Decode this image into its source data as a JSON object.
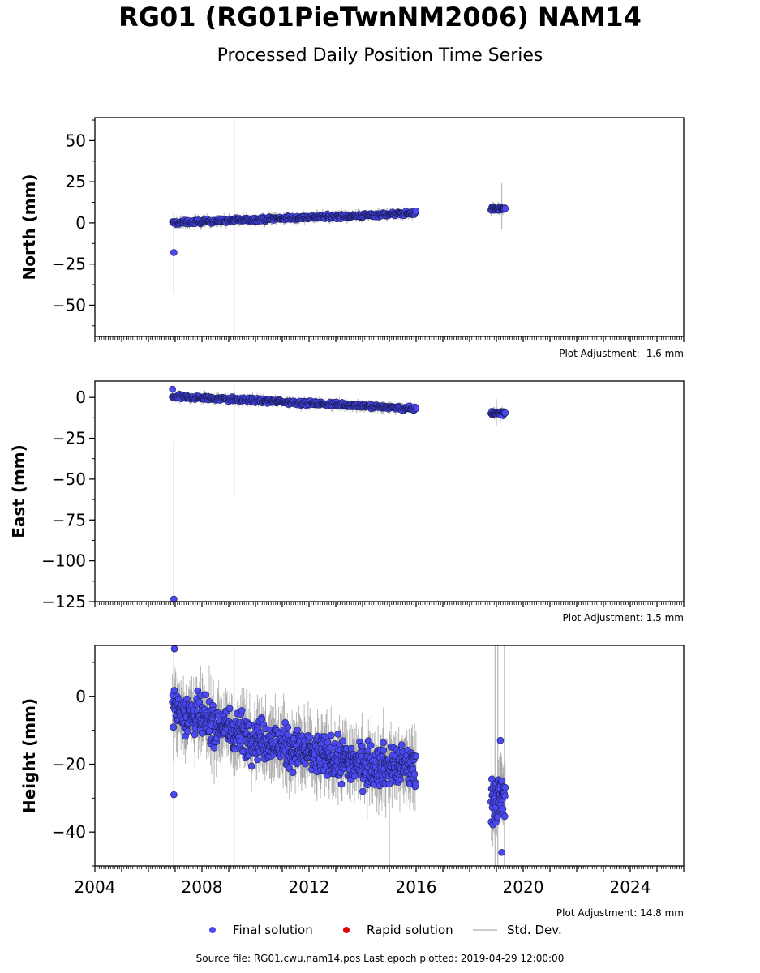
{
  "title": "RG01 (RG01PieTwnNM2006) NAM14",
  "subtitle": "Processed Daily Position Time Series",
  "footer": "Source file: RG01.cwu.nam14.pos  Last epoch plotted: 2019-04-29 12:00:00",
  "colors": {
    "final": "#4a4af0",
    "rapid": "#e00000",
    "stddev": "#bbbbbb"
  },
  "legend": [
    {
      "label": "Final solution",
      "marker": "circle-blue"
    },
    {
      "label": "Rapid solution",
      "marker": "circle-red"
    },
    {
      "label": "Std. Dev.",
      "marker": "line-gray"
    }
  ],
  "chart_data": [
    {
      "type": "scatter",
      "ylabel": "North (mm)",
      "xlim": [
        2004,
        2026
      ],
      "ylim": [
        -69,
        64
      ],
      "yticks": [
        50,
        25,
        0,
        -25,
        -50
      ],
      "adjustment": "Plot Adjustment: -1.6 mm",
      "trend": [
        [
          2006.9,
          0
        ],
        [
          2009,
          1.5
        ],
        [
          2012,
          3.5
        ],
        [
          2014,
          4.5
        ],
        [
          2015.9,
          6
        ]
      ],
      "gap": [
        2016.0,
        2018.8
      ],
      "late": {
        "range": [
          2018.8,
          2019.33
        ],
        "level": 8.5
      },
      "noise": 1.2,
      "outliers": [
        {
          "x": 2006.95,
          "y": -18
        }
      ],
      "stddev_bars": [
        {
          "x": 2006.95,
          "y0": -43,
          "y1": 7
        },
        {
          "x": 2009.2,
          "y0": -69,
          "y1": 64
        },
        {
          "x": 2019.2,
          "y0": -4,
          "y1": 24
        }
      ]
    },
    {
      "type": "scatter",
      "ylabel": "East (mm)",
      "xlim": [
        2004,
        2026
      ],
      "ylim": [
        -125,
        10
      ],
      "yticks": [
        0,
        -25,
        -50,
        -75,
        -100,
        -125
      ],
      "adjustment": "Plot Adjustment: 1.5 mm",
      "trend": [
        [
          2006.9,
          0.5
        ],
        [
          2009,
          -1
        ],
        [
          2012,
          -3.5
        ],
        [
          2014,
          -5
        ],
        [
          2015.9,
          -7
        ]
      ],
      "gap": [
        2016.0,
        2018.8
      ],
      "late": {
        "range": [
          2018.8,
          2019.33
        ],
        "level": -9.5
      },
      "noise": 1.3,
      "outliers": [
        {
          "x": 2006.95,
          "y": -123.5
        },
        {
          "x": 2006.9,
          "y": 5
        }
      ],
      "stddev_bars": [
        {
          "x": 2006.95,
          "y0": -125,
          "y1": -27
        },
        {
          "x": 2009.2,
          "y0": -60,
          "y1": 10
        },
        {
          "x": 2019.0,
          "y0": -17,
          "y1": -1
        }
      ]
    },
    {
      "type": "scatter",
      "ylabel": "Height (mm)",
      "xlim": [
        2004,
        2026
      ],
      "ylim": [
        -50,
        15
      ],
      "yticks": [
        0,
        -20,
        -40
      ],
      "xticks": [
        2004,
        2008,
        2012,
        2016,
        2020,
        2024
      ],
      "adjustment": "Plot Adjustment: 14.8 mm",
      "trend": [
        [
          2006.9,
          -3
        ],
        [
          2008,
          -7
        ],
        [
          2010,
          -12
        ],
        [
          2012,
          -17
        ],
        [
          2014,
          -20
        ],
        [
          2015.9,
          -21
        ]
      ],
      "gap": [
        2016.0,
        2018.8
      ],
      "late": {
        "range": [
          2018.8,
          2019.33
        ],
        "level": -30
      },
      "noise": 6,
      "outliers": [
        {
          "x": 2006.95,
          "y": -29
        },
        {
          "x": 2006.97,
          "y": 14
        },
        {
          "x": 2019.15,
          "y": -13
        },
        {
          "x": 2019.2,
          "y": -46
        }
      ],
      "stddev_bars": [
        {
          "x": 2006.95,
          "y0": -50,
          "y1": 14
        },
        {
          "x": 2009.2,
          "y0": -50,
          "y1": 15
        },
        {
          "x": 2015.0,
          "y0": -50,
          "y1": -30
        },
        {
          "x": 2018.95,
          "y0": -50,
          "y1": 15
        },
        {
          "x": 2019.05,
          "y0": -50,
          "y1": 15
        },
        {
          "x": 2019.3,
          "y0": -50,
          "y1": 15
        }
      ]
    }
  ]
}
